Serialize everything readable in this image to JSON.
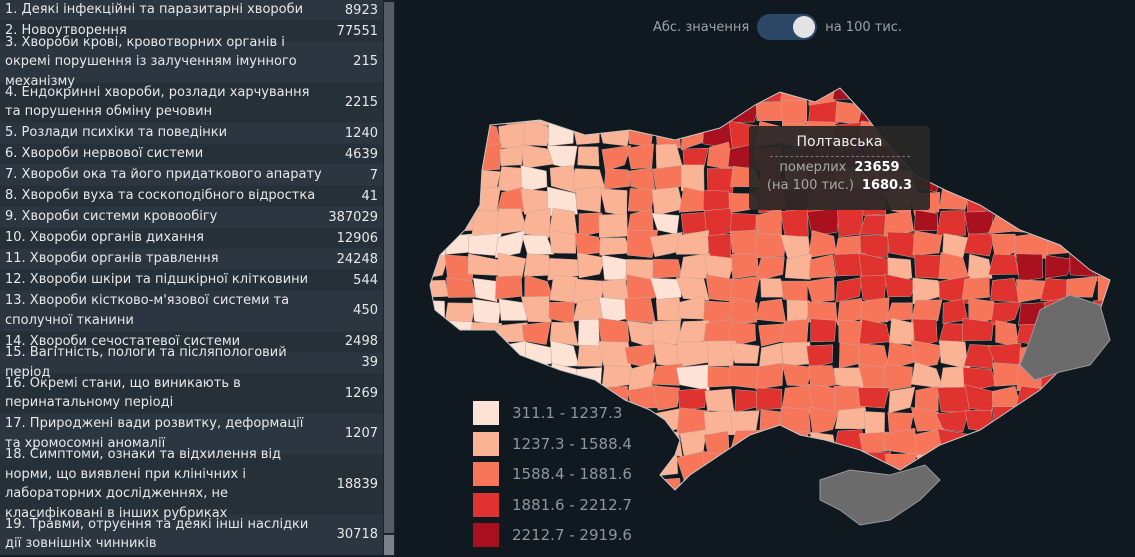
{
  "list": [
    {
      "label": "1. Деякі інфекційні та паразитарні хвороби",
      "value": "8923",
      "lines": 1
    },
    {
      "label": "2. Новоутворення",
      "value": "77551",
      "lines": 1
    },
    {
      "label": "3. Хвороби крові, кровотворних органів і окремі порушення із залученням імунного механізму",
      "value": "215",
      "lines": 2
    },
    {
      "label": "4. Ендокринні хвороби, розлади харчування та порушення обміну речовин",
      "value": "2215",
      "lines": 2
    },
    {
      "label": "5. Розлади психіки та поведінки",
      "value": "1240",
      "lines": 1
    },
    {
      "label": "6. Хвороби нервової системи",
      "value": "4639",
      "lines": 1
    },
    {
      "label": "7. Хвороби ока та його придаткового апарату",
      "value": "7",
      "lines": 1
    },
    {
      "label": "8. Хвороби вуха та соскоподібного відростка",
      "value": "41",
      "lines": 1
    },
    {
      "label": "9. Хвороби системи кровообігу",
      "value": "387029",
      "lines": 1
    },
    {
      "label": "10. Хвороби органів дихання",
      "value": "12906",
      "lines": 1
    },
    {
      "label": "11. Хвороби органів травлення",
      "value": "24248",
      "lines": 1
    },
    {
      "label": "12. Хвороби шкіри та підшкірної клітковини",
      "value": "544",
      "lines": 1
    },
    {
      "label": "13. Хвороби кістково-м'язової системи та сполучної тканини",
      "value": "450",
      "lines": 2
    },
    {
      "label": "14. Хвороби сечостатевої системи",
      "value": "2498",
      "lines": 1
    },
    {
      "label": "15. Вагітність, пологи та післяпологовий період",
      "value": "39",
      "lines": 1
    },
    {
      "label": "16. Окремі стани, що виникають в перинатальному періоді",
      "value": "1269",
      "lines": 2
    },
    {
      "label": "17. Природжені вади розвитку, деформації та хромосомні аномалії",
      "value": "1207",
      "lines": 2
    },
    {
      "label": "18. Симптоми, ознаки та відхилення від норми, що виявлені при клінічних і лабораторних дослідженнях, не класифіковані в інших рубриках",
      "value": "18839",
      "lines": 3
    },
    {
      "label": "19. Травми, отруєння та деякі інші наслідки дії зовнішніх чинників",
      "value": "30718",
      "lines": 2
    }
  ],
  "toggle": {
    "left_label": "Абс. значення",
    "right_label": "на 100 тис.",
    "state": "right"
  },
  "legend": [
    {
      "range": "311.1 - 1237.3",
      "color": "#fde3d6"
    },
    {
      "range": "1237.3 - 1588.4",
      "color": "#fbb396"
    },
    {
      "range": "1588.4 - 1881.6",
      "color": "#f7765a"
    },
    {
      "range": "1881.6 - 2212.7",
      "color": "#e0322e"
    },
    {
      "range": "2212.7 - 2919.6",
      "color": "#a8111d"
    }
  ],
  "tooltip": {
    "region": "Полтавська",
    "row1_key": "померлих",
    "row1_value": "23659",
    "row2_key": "(на 100 тис.)",
    "row2_value": "1680.3"
  },
  "colors": {
    "no_data": "#6b6b6b",
    "background": "#101820",
    "border": "#9aa3ab"
  }
}
